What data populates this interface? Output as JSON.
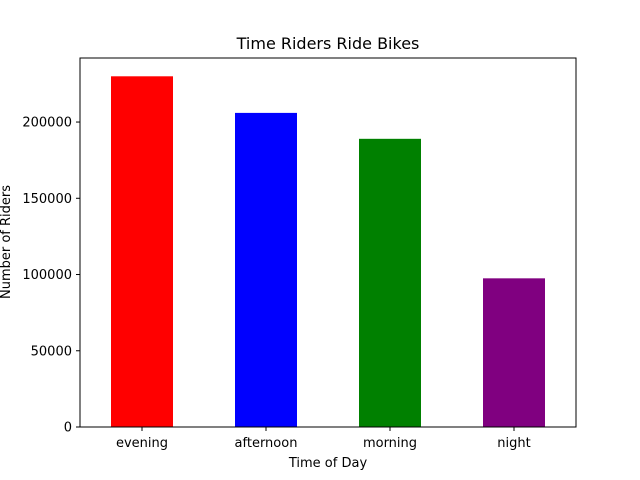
{
  "chart_data": {
    "type": "bar",
    "title": "Time Riders Ride Bikes",
    "xlabel": "Time of Day",
    "ylabel": "Number of Riders",
    "categories": [
      "evening",
      "afternoon",
      "morning",
      "night"
    ],
    "values": [
      230000,
      206000,
      189000,
      97500
    ],
    "colors": [
      "#ff0000",
      "#0000ff",
      "#008000",
      "#800080"
    ],
    "ylim": [
      0,
      242000
    ],
    "yticks": [
      0,
      50000,
      100000,
      150000,
      200000
    ],
    "ytick_labels": [
      "0",
      "50000",
      "100000",
      "150000",
      "200000"
    ],
    "grid": false,
    "legend": "none"
  }
}
